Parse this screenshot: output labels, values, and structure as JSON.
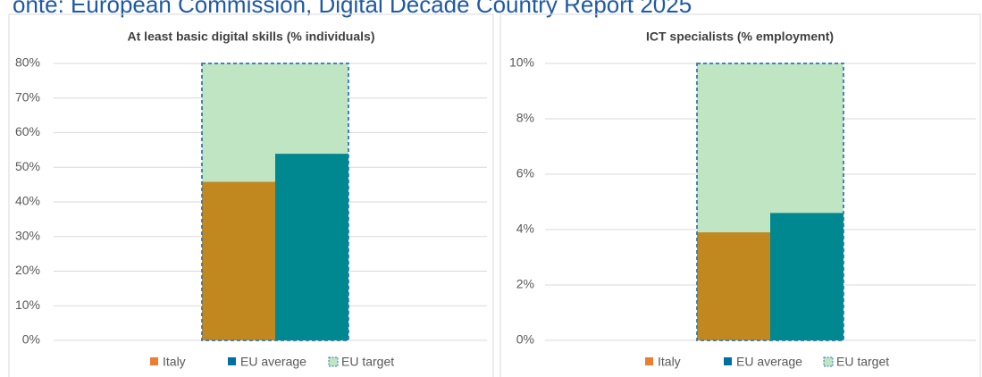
{
  "note": "onte: European Commission, Digital Decade Country Report 2025",
  "chart_data": [
    {
      "type": "bar",
      "title": "At least basic digital skills (% individuals)",
      "series": [
        {
          "name": "Italy",
          "color": "#c0881f",
          "values": [
            45.8
          ]
        },
        {
          "name": "EU average",
          "color": "#008891",
          "values": [
            53.9
          ]
        },
        {
          "name": "EU target",
          "color": "#bfe5c3",
          "values": [
            80
          ]
        }
      ],
      "ylim": [
        0,
        80
      ],
      "yticks": [
        {
          "value": 0,
          "label": "0%"
        },
        {
          "value": 10,
          "label": "10%"
        },
        {
          "value": 20,
          "label": "20%"
        },
        {
          "value": 30,
          "label": "30%"
        },
        {
          "value": 40,
          "label": "40%"
        },
        {
          "value": 50,
          "label": "50%"
        },
        {
          "value": 60,
          "label": "60%"
        },
        {
          "value": 70,
          "label": "70%"
        },
        {
          "value": 80,
          "label": "80%"
        }
      ],
      "grid": true,
      "legend": "bottom"
    },
    {
      "type": "bar",
      "title": "ICT specialists (% employment)",
      "series": [
        {
          "name": "Italy",
          "color": "#c0881f",
          "values": [
            3.9
          ]
        },
        {
          "name": "EU average",
          "color": "#008891",
          "values": [
            4.6
          ]
        },
        {
          "name": "EU target",
          "color": "#bfe5c3",
          "values": [
            10
          ]
        }
      ],
      "ylim": [
        0,
        10
      ],
      "yticks": [
        {
          "value": 0,
          "label": "0%"
        },
        {
          "value": 2,
          "label": "2%"
        },
        {
          "value": 4,
          "label": "4%"
        },
        {
          "value": 6,
          "label": "6%"
        },
        {
          "value": 8,
          "label": "8%"
        },
        {
          "value": 10,
          "label": "10%"
        }
      ],
      "grid": true,
      "legend": "bottom"
    }
  ]
}
